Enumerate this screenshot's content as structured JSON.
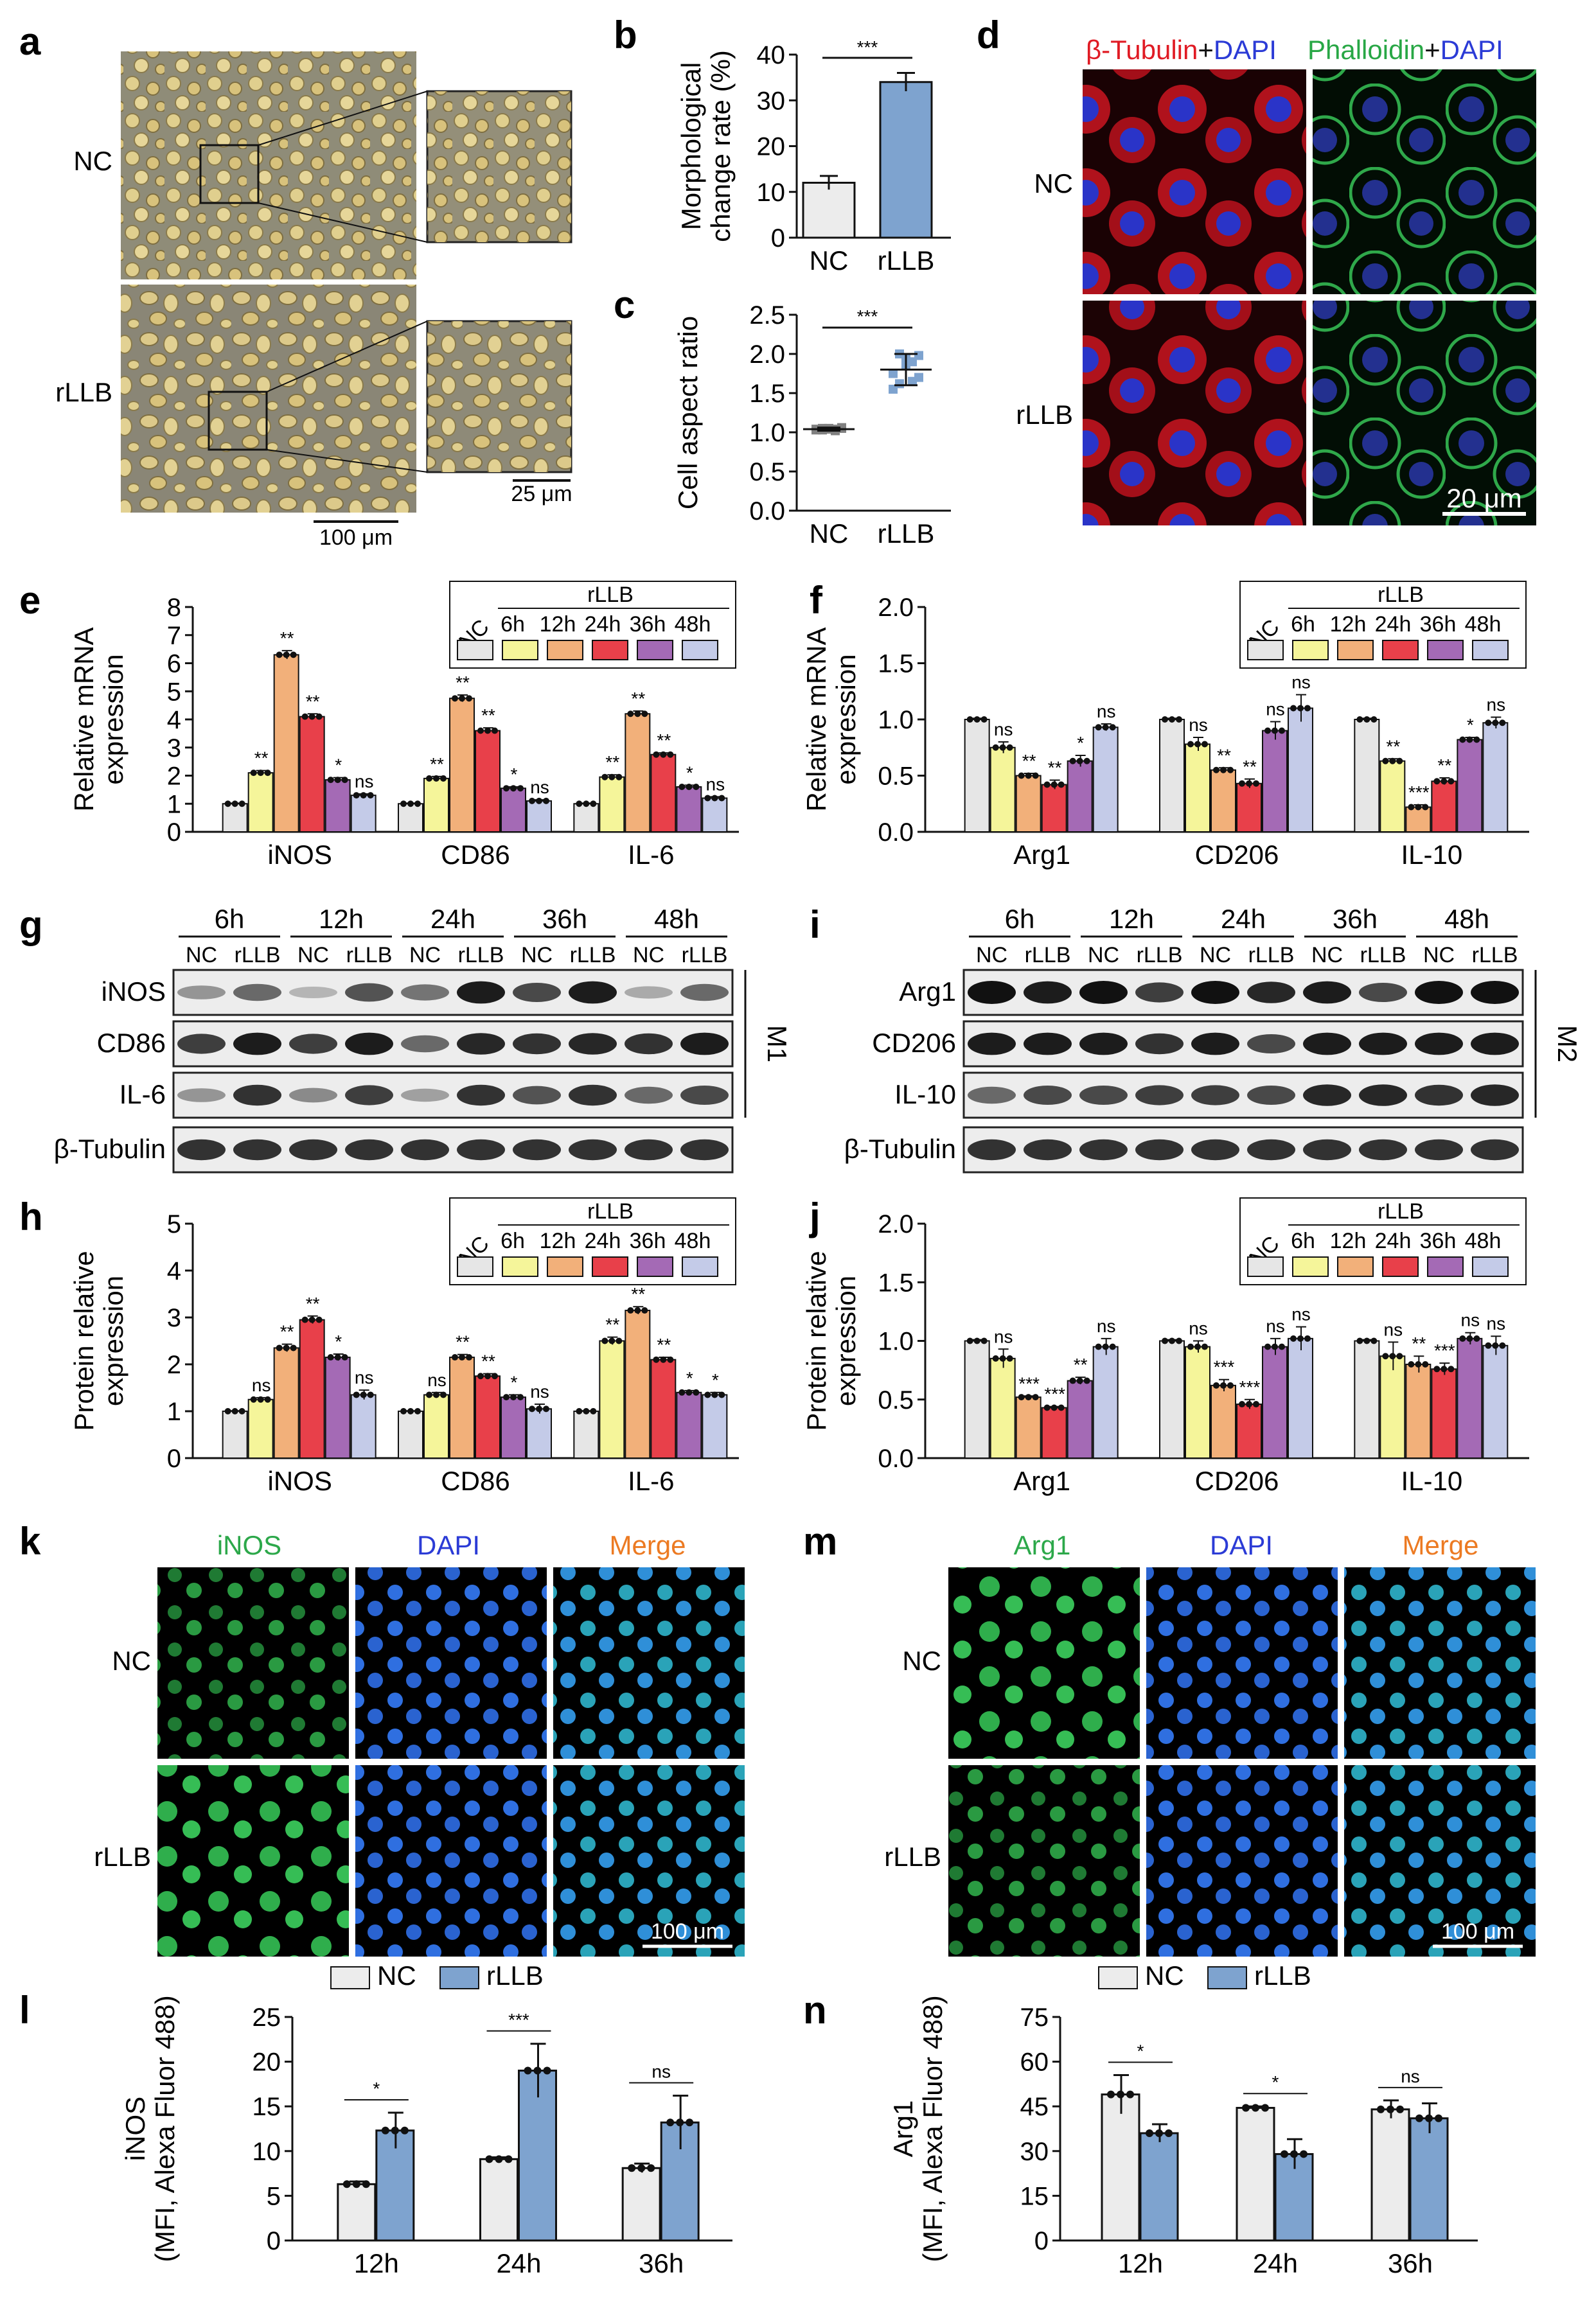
{
  "panels": {
    "a": {
      "letter": "a",
      "rows": [
        "NC",
        "rLLB"
      ],
      "scalebar_main": "100 μm",
      "scalebar_inset": "25 μm"
    },
    "d": {
      "letter": "d",
      "header": {
        "left_red": "β-Tubulin",
        "plus1": "+",
        "left_blue": "DAPI",
        "right_green": "Phalloidin",
        "plus2": "+",
        "right_blue": "DAPI"
      },
      "rows": [
        "NC",
        "rLLB"
      ],
      "scalebar": "20 μm"
    },
    "g": {
      "letter": "g",
      "timepoints": [
        "6h",
        "12h",
        "24h",
        "36h",
        "48h"
      ],
      "lanes": [
        "NC",
        "rLLB",
        "NC",
        "rLLB",
        "NC",
        "rLLB",
        "NC",
        "rLLB",
        "NC",
        "rLLB"
      ],
      "rows": [
        "iNOS",
        "CD86",
        "IL-6",
        "β-Tubulin"
      ],
      "group": "M1"
    },
    "i": {
      "letter": "i",
      "timepoints": [
        "6h",
        "12h",
        "24h",
        "36h",
        "48h"
      ],
      "lanes": [
        "NC",
        "rLLB",
        "NC",
        "rLLB",
        "NC",
        "rLLB",
        "NC",
        "rLLB",
        "NC",
        "rLLB"
      ],
      "rows": [
        "Arg1",
        "CD206",
        "IL-10",
        "β-Tubulin"
      ],
      "group": "M2"
    },
    "k": {
      "letter": "k",
      "columns": [
        "iNOS",
        "DAPI",
        "Merge"
      ],
      "rows": [
        "NC",
        "rLLB"
      ],
      "scalebar": "100 μm"
    },
    "m": {
      "letter": "m",
      "columns": [
        "Arg1",
        "DAPI",
        "Merge"
      ],
      "rows": [
        "NC",
        "rLLB"
      ],
      "scalebar": "100 μm"
    }
  },
  "chart_data": [
    {
      "id": "b",
      "letter": "b",
      "type": "bar",
      "categories": [
        "NC",
        "rLLB"
      ],
      "values": [
        12,
        34
      ],
      "errors": [
        1.5,
        2
      ],
      "colors": [
        "#ececec",
        "#7ea3cf"
      ],
      "ylabel": [
        "Morphological",
        "change rate (%)"
      ],
      "ylim": [
        0,
        40
      ],
      "yticks": [
        "0",
        "10",
        "20",
        "30",
        "40"
      ],
      "significance": "***"
    },
    {
      "id": "c",
      "letter": "c",
      "type": "scatter",
      "categories": [
        "NC",
        "rLLB"
      ],
      "mean": [
        1.04,
        1.8
      ],
      "sd": [
        0.02,
        0.2
      ],
      "points": [
        [
          1.03,
          1.05,
          1.04,
          1.02,
          1.06,
          1.04,
          1.03,
          1.05,
          1.04,
          1.05
        ],
        [
          1.55,
          1.62,
          1.95,
          1.9,
          1.7,
          1.75,
          2.0,
          1.85,
          1.65,
          1.98
        ]
      ],
      "colors": [
        "#808080",
        "#7ea3cf"
      ],
      "ylabel": [
        "Cell aspect ratio"
      ],
      "ylim": [
        0,
        2.5
      ],
      "yticks": [
        "0.0",
        "0.5",
        "1.0",
        "1.5",
        "2.0",
        "2.5"
      ],
      "significance": "***"
    },
    {
      "id": "e",
      "letter": "e",
      "type": "bar",
      "categories": [
        "iNOS",
        "CD86",
        "IL-6"
      ],
      "series": [
        {
          "values": [
            1,
            1,
            1
          ],
          "errors": [
            0.02,
            0.02,
            0.02
          ],
          "stars": [
            "",
            "",
            ""
          ]
        },
        {
          "values": [
            2.1,
            1.9,
            1.95
          ],
          "errors": [
            0.08,
            0.07,
            0.08
          ],
          "stars": [
            "**",
            "**",
            "**"
          ]
        },
        {
          "values": [
            6.3,
            4.75,
            4.2
          ],
          "errors": [
            0.15,
            0.12,
            0.1
          ],
          "stars": [
            "**",
            "**",
            "**"
          ]
        },
        {
          "values": [
            4.1,
            3.6,
            2.75
          ],
          "errors": [
            0.1,
            0.1,
            0.06
          ],
          "stars": [
            "**",
            "**",
            "**"
          ]
        },
        {
          "values": [
            1.85,
            1.55,
            1.6
          ],
          "errors": [
            0.08,
            0.05,
            0.06
          ],
          "stars": [
            "*",
            "*",
            "*"
          ]
        },
        {
          "values": [
            1.3,
            1.1,
            1.2
          ],
          "errors": [
            0.05,
            0.04,
            0.05
          ],
          "stars": [
            "ns",
            "ns",
            "ns"
          ]
        }
      ],
      "colors": [
        "#e6e6e6",
        "#f5f59a",
        "#f2b07a",
        "#e8404a",
        "#a46ab5",
        "#c4cbe8"
      ],
      "legend": {
        "nc": "NC",
        "group": "rLLB",
        "times": [
          "6h",
          "12h",
          "24h",
          "36h",
          "48h"
        ]
      },
      "ylabel": [
        "Relative mRNA",
        "expression"
      ],
      "ylim": [
        0,
        8
      ],
      "yticks": [
        "0",
        "1",
        "2",
        "3",
        "4",
        "5",
        "6",
        "7",
        "8"
      ]
    },
    {
      "id": "f",
      "letter": "f",
      "type": "bar",
      "categories": [
        "Arg1",
        "CD206",
        "IL-10"
      ],
      "series": [
        {
          "values": [
            1,
            1,
            1
          ],
          "errors": [
            0.01,
            0.01,
            0.01
          ],
          "stars": [
            "",
            "",
            ""
          ]
        },
        {
          "values": [
            0.75,
            0.78,
            0.63
          ],
          "errors": [
            0.05,
            0.06,
            0.02
          ],
          "stars": [
            "ns",
            "ns",
            "**"
          ]
        },
        {
          "values": [
            0.5,
            0.55,
            0.22
          ],
          "errors": [
            0.02,
            0.02,
            0.02
          ],
          "stars": [
            "**",
            "**",
            "***"
          ]
        },
        {
          "values": [
            0.42,
            0.43,
            0.45
          ],
          "errors": [
            0.04,
            0.04,
            0.03
          ],
          "stars": [
            "**",
            "**",
            "**"
          ]
        },
        {
          "values": [
            0.63,
            0.9,
            0.82
          ],
          "errors": [
            0.05,
            0.08,
            0.02
          ],
          "stars": [
            "*",
            "ns",
            "*"
          ]
        },
        {
          "values": [
            0.93,
            1.1,
            0.97
          ],
          "errors": [
            0.03,
            0.12,
            0.05
          ],
          "stars": [
            "ns",
            "ns",
            "ns"
          ]
        }
      ],
      "colors": [
        "#e6e6e6",
        "#f5f59a",
        "#f2b07a",
        "#e8404a",
        "#a46ab5",
        "#c4cbe8"
      ],
      "legend": {
        "nc": "NC",
        "group": "rLLB",
        "times": [
          "6h",
          "12h",
          "24h",
          "36h",
          "48h"
        ]
      },
      "ylabel": [
        "Relative mRNA",
        "expression"
      ],
      "ylim": [
        0,
        2
      ],
      "yticks": [
        "0.0",
        "0.5",
        "1.0",
        "1.5",
        "2.0"
      ]
    },
    {
      "id": "h",
      "letter": "h",
      "type": "bar",
      "categories": [
        "iNOS",
        "CD86",
        "IL-6"
      ],
      "series": [
        {
          "values": [
            1,
            1,
            1
          ],
          "errors": [
            0.01,
            0.01,
            0.01
          ],
          "stars": [
            "",
            "",
            ""
          ]
        },
        {
          "values": [
            1.25,
            1.35,
            2.5
          ],
          "errors": [
            0.04,
            0.05,
            0.08
          ],
          "stars": [
            "ns",
            "ns",
            "**"
          ]
        },
        {
          "values": [
            2.35,
            2.15,
            3.15
          ],
          "errors": [
            0.08,
            0.06,
            0.08
          ],
          "stars": [
            "**",
            "**",
            "**"
          ]
        },
        {
          "values": [
            2.95,
            1.75,
            2.1
          ],
          "errors": [
            0.08,
            0.05,
            0.05
          ],
          "stars": [
            "**",
            "**",
            "**"
          ]
        },
        {
          "values": [
            2.15,
            1.3,
            1.4
          ],
          "errors": [
            0.07,
            0.05,
            0.04
          ],
          "stars": [
            "*",
            "*",
            "*"
          ]
        },
        {
          "values": [
            1.35,
            1.05,
            1.35
          ],
          "errors": [
            0.1,
            0.1,
            0.05
          ],
          "stars": [
            "ns",
            "ns",
            "*"
          ]
        }
      ],
      "colors": [
        "#e6e6e6",
        "#f5f59a",
        "#f2b07a",
        "#e8404a",
        "#a46ab5",
        "#c4cbe8"
      ],
      "legend": {
        "nc": "NC",
        "group": "rLLB",
        "times": [
          "6h",
          "12h",
          "24h",
          "36h",
          "48h"
        ]
      },
      "ylabel": [
        "Protein relative",
        "expression"
      ],
      "ylim": [
        0,
        5
      ],
      "yticks": [
        "0",
        "1",
        "2",
        "3",
        "4",
        "5"
      ]
    },
    {
      "id": "j",
      "letter": "j",
      "type": "bar",
      "categories": [
        "Arg1",
        "CD206",
        "IL-10"
      ],
      "series": [
        {
          "values": [
            1,
            1,
            1
          ],
          "errors": [
            0.01,
            0.01,
            0.01
          ],
          "stars": [
            "",
            "",
            ""
          ]
        },
        {
          "values": [
            0.85,
            0.95,
            0.87
          ],
          "errors": [
            0.08,
            0.05,
            0.12
          ],
          "stars": [
            "ns",
            "ns",
            "ns"
          ]
        },
        {
          "values": [
            0.52,
            0.62,
            0.8
          ],
          "errors": [
            0.01,
            0.05,
            0.07
          ],
          "stars": [
            "***",
            "***",
            "**"
          ]
        },
        {
          "values": [
            0.43,
            0.46,
            0.76
          ],
          "errors": [
            0.01,
            0.04,
            0.05
          ],
          "stars": [
            "***",
            "***",
            "***"
          ]
        },
        {
          "values": [
            0.66,
            0.95,
            1.02
          ],
          "errors": [
            0.03,
            0.07,
            0.05
          ],
          "stars": [
            "**",
            "ns",
            "ns"
          ]
        },
        {
          "values": [
            0.95,
            1.02,
            0.96
          ],
          "errors": [
            0.07,
            0.1,
            0.08
          ],
          "stars": [
            "ns",
            "ns",
            "ns"
          ]
        }
      ],
      "colors": [
        "#e6e6e6",
        "#f5f59a",
        "#f2b07a",
        "#e8404a",
        "#a46ab5",
        "#c4cbe8"
      ],
      "legend": {
        "nc": "NC",
        "group": "rLLB",
        "times": [
          "6h",
          "12h",
          "24h",
          "36h",
          "48h"
        ]
      },
      "ylabel": [
        "Protein relative",
        "expression"
      ],
      "ylim": [
        0,
        2
      ],
      "yticks": [
        "0.0",
        "0.5",
        "1.0",
        "1.5",
        "2.0"
      ]
    },
    {
      "id": "l",
      "letter": "l",
      "type": "bar",
      "categories": [
        "12h",
        "24h",
        "36h"
      ],
      "series": [
        {
          "name": "NC",
          "values": [
            6.3,
            9.1,
            8.1
          ],
          "errors": [
            0.3,
            0.2,
            0.5
          ]
        },
        {
          "name": "rLLB",
          "values": [
            12.3,
            19.0,
            13.2
          ],
          "errors": [
            2.0,
            3.0,
            3.0
          ]
        }
      ],
      "colors": [
        "#ececec",
        "#7ea3cf"
      ],
      "significance": [
        "*",
        "***",
        "ns"
      ],
      "ylabel": [
        "iNOS",
        "(MFI, Alexa Fluor 488)"
      ],
      "ylim": [
        0,
        25
      ],
      "yticks": [
        "0",
        "5",
        "10",
        "15",
        "20",
        "25"
      ]
    },
    {
      "id": "n",
      "letter": "n",
      "type": "bar",
      "categories": [
        "12h",
        "24h",
        "36h"
      ],
      "series": [
        {
          "name": "NC",
          "values": [
            49,
            44.5,
            44
          ],
          "errors": [
            6.5,
            0.5,
            3
          ]
        },
        {
          "name": "rLLB",
          "values": [
            36,
            29,
            41
          ],
          "errors": [
            3,
            5,
            5
          ]
        }
      ],
      "colors": [
        "#ececec",
        "#7ea3cf"
      ],
      "significance": [
        "*",
        "*",
        "ns"
      ],
      "ylabel": [
        "Arg1",
        "(MFI, Alexa Fluor 488)"
      ],
      "ylim": [
        0,
        75
      ],
      "yticks": [
        "0",
        "15",
        "30",
        "45",
        "60",
        "75"
      ]
    }
  ]
}
